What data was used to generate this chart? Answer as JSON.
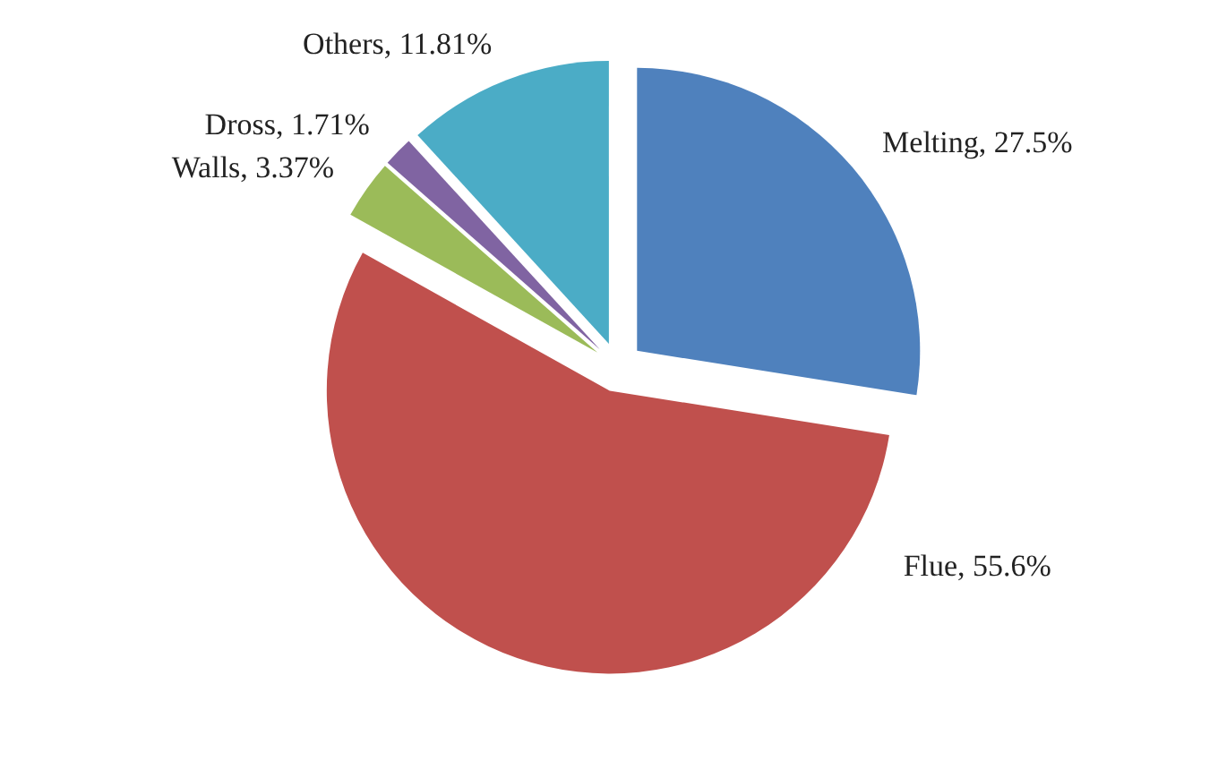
{
  "chart_data": {
    "type": "pie",
    "categories": [
      "Melting",
      "Flue",
      "Walls",
      "Dross",
      "Others"
    ],
    "values": [
      27.5,
      55.6,
      3.37,
      1.71,
      11.81
    ],
    "colors": [
      "#4f81bd",
      "#c0504d",
      "#9bbb59",
      "#8064a2",
      "#4bacc6"
    ],
    "value_labels": [
      ", 27.5%",
      ", 55.6%",
      ", 3.37%",
      ", 1.71%",
      ", 11.81%"
    ],
    "legend": false
  }
}
